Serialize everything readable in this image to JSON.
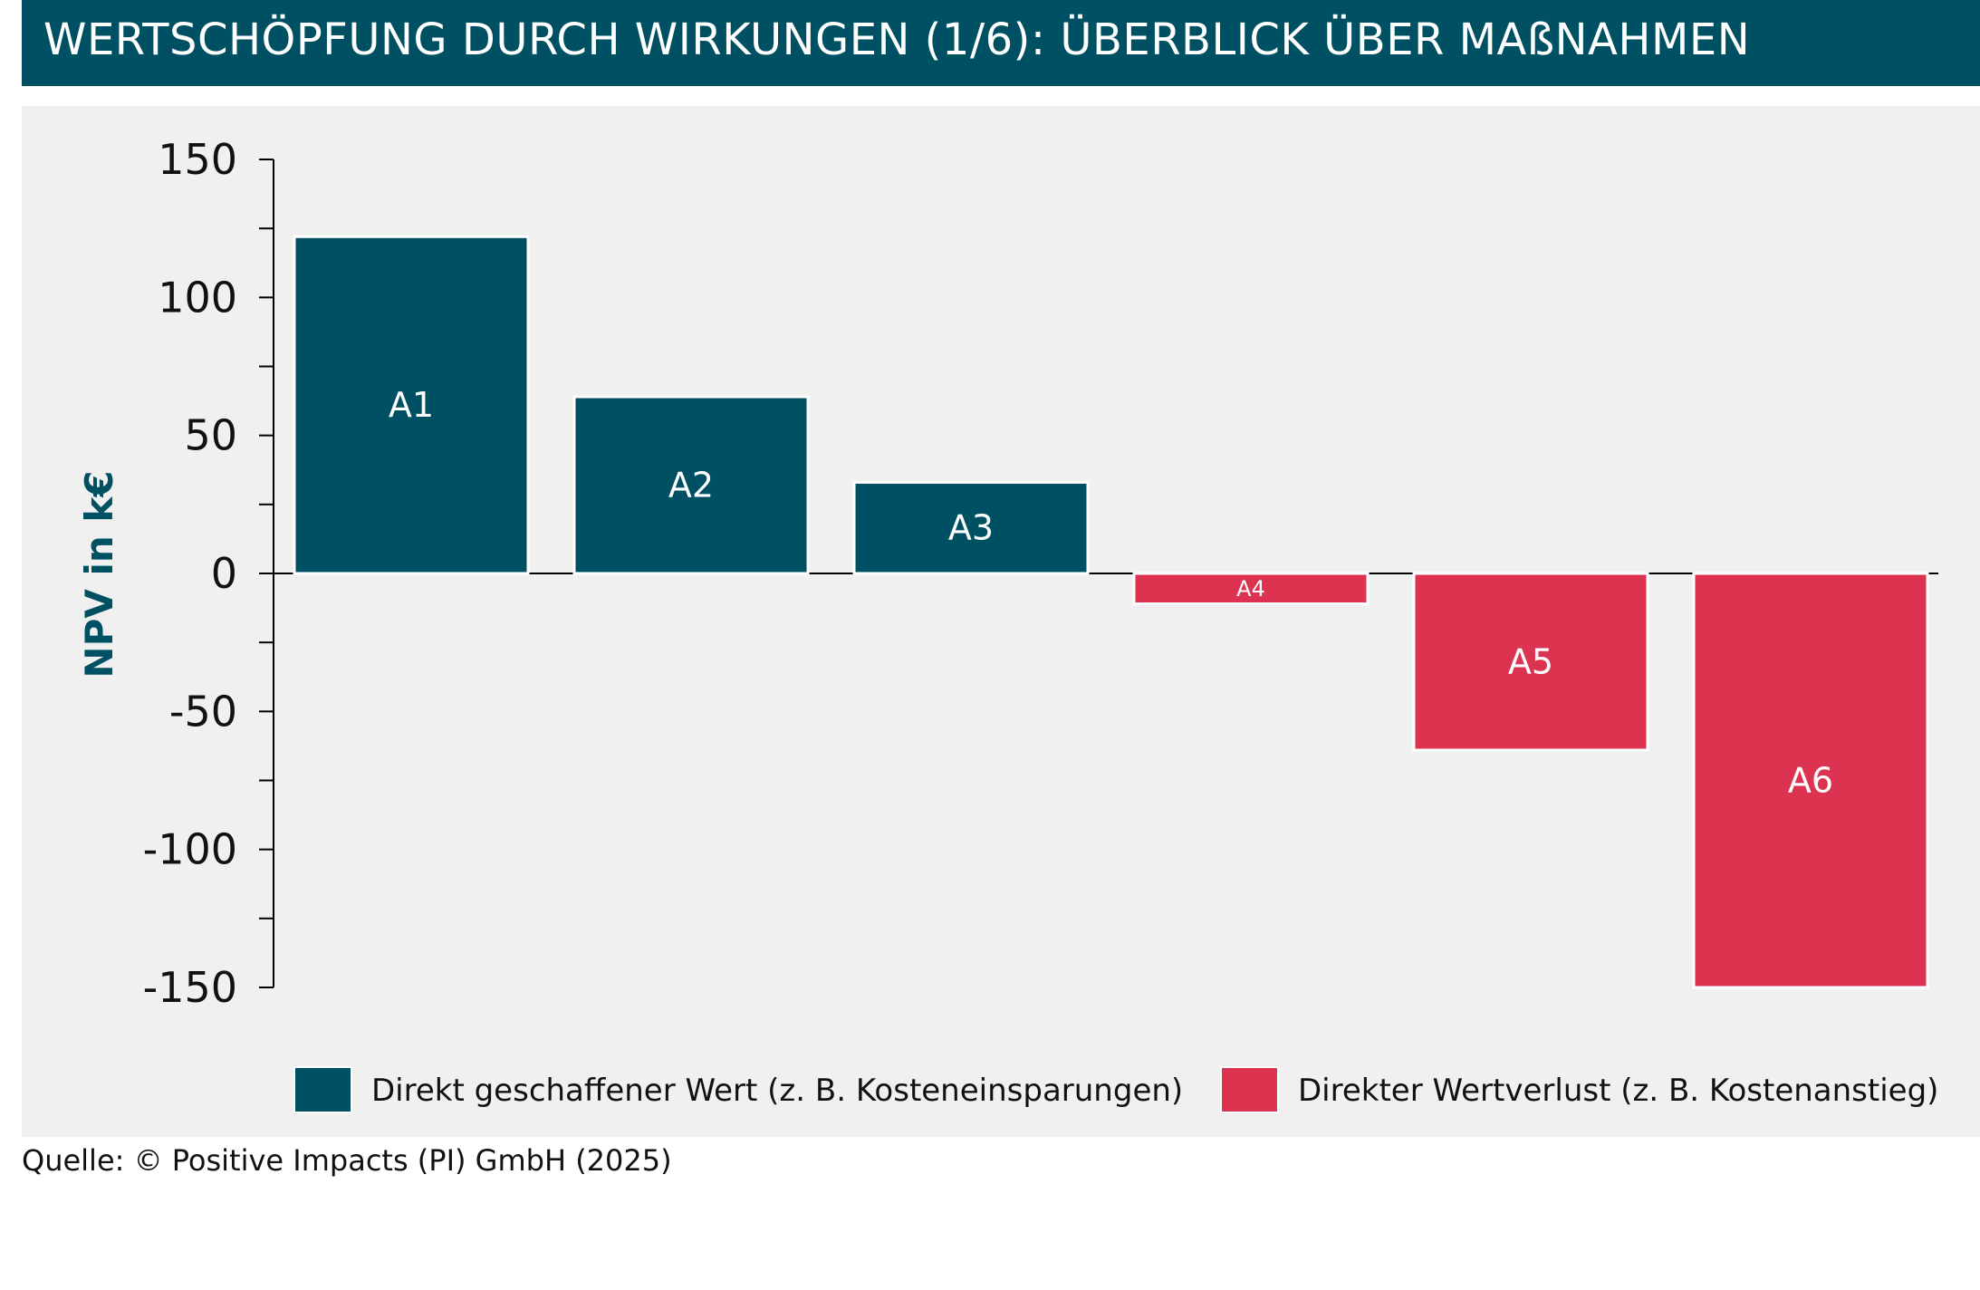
{
  "title": "WERTSCHÖPFUNG DURCH WIRKUNGEN (1/6): ÜBERBLICK ÜBER MAßNAHMEN",
  "source": "Quelle: © Positive Impacts (PI) GmbH (2025)",
  "colors": {
    "header": "#005063",
    "positive": "#005063",
    "negative": "#dc3350",
    "background": "#f0f0f0"
  },
  "chart_data": {
    "type": "bar",
    "title": "",
    "xlabel": "",
    "ylabel": "NPV in k€",
    "ylim": [
      -150,
      150
    ],
    "yticks": [
      150,
      100,
      50,
      0,
      -50,
      -100,
      -150
    ],
    "yticklabels": [
      "150",
      "100",
      "50",
      "0",
      "-50",
      "-100",
      "-150"
    ],
    "grid": false,
    "categories": [
      "A1",
      "A2",
      "A3",
      "A4",
      "A5",
      "A6"
    ],
    "values": [
      122,
      64,
      33,
      -11,
      -64,
      -150
    ],
    "legend": {
      "placement": "bottom",
      "entries": [
        {
          "label": "Direkt geschaffener Wert (z. B. Kosteneinsparungen)",
          "color": "#005063"
        },
        {
          "label": "Direkter Wertverlust (z. B. Kostenanstieg)",
          "color": "#dc3350"
        }
      ]
    }
  }
}
